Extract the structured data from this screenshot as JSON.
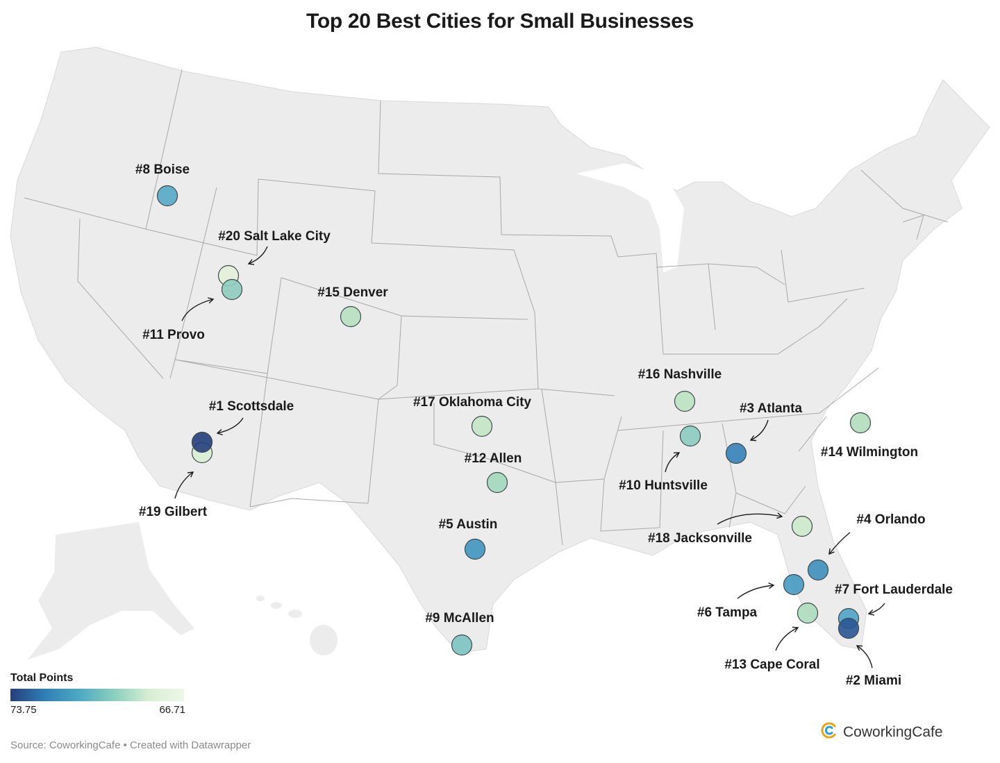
{
  "title": "Top 20 Best Cities for Small Businesses",
  "legend": {
    "title": "Total Points",
    "min_label": "73.75",
    "max_label": "66.71"
  },
  "source": "Source: CoworkingCafe • Created with Datawrapper",
  "brand": {
    "name": "CoworkingCafe",
    "icon": "coworkingcafe-logo-icon"
  },
  "colors": {
    "land": "#ececec",
    "border": "#a8a8a8",
    "scale_low": "#253e7c",
    "scale_high": "#eef7ea"
  },
  "cities": [
    {
      "rank": 1,
      "label": "#1 Scottsdale",
      "points": 73.75,
      "color": "#253e7c"
    },
    {
      "rank": 2,
      "label": "#2 Miami",
      "points": 73.2,
      "color": "#2a5595"
    },
    {
      "rank": 3,
      "label": "#3 Atlanta",
      "points": 72.1,
      "color": "#3582b7"
    },
    {
      "rank": 4,
      "label": "#4 Orlando",
      "points": 71.5,
      "color": "#3d8fbd"
    },
    {
      "rank": 5,
      "label": "#5 Austin",
      "points": 71.2,
      "color": "#4195c0"
    },
    {
      "rank": 6,
      "label": "#6 Tampa",
      "points": 71.0,
      "color": "#4699c2"
    },
    {
      "rank": 7,
      "label": "#7 Fort Lauderdale",
      "points": 70.7,
      "color": "#4ea3c6"
    },
    {
      "rank": 8,
      "label": "#8 Boise",
      "points": 70.5,
      "color": "#56a8c6"
    },
    {
      "rank": 9,
      "label": "#9 McAllen",
      "points": 69.6,
      "color": "#7cc4c2"
    },
    {
      "rank": 10,
      "label": "#10 Huntsville",
      "points": 69.4,
      "color": "#8ccbc0"
    },
    {
      "rank": 11,
      "label": "#11 Provo",
      "points": 69.3,
      "color": "#8ecdbf"
    },
    {
      "rank": 12,
      "label": "#12 Allen",
      "points": 68.9,
      "color": "#a3d8bc"
    },
    {
      "rank": 13,
      "label": "#13 Cape Coral",
      "points": 68.6,
      "color": "#acdbbd"
    },
    {
      "rank": 14,
      "label": "#14 Wilmington",
      "points": 68.4,
      "color": "#b2ddbe"
    },
    {
      "rank": 15,
      "label": "#15 Denver",
      "points": 68.1,
      "color": "#b8e0c0"
    },
    {
      "rank": 16,
      "label": "#16 Nashville",
      "points": 67.9,
      "color": "#bde2c2"
    },
    {
      "rank": 17,
      "label": "#17 Oklahoma City",
      "points": 67.6,
      "color": "#c4e5c7"
    },
    {
      "rank": 18,
      "label": "#18 Jacksonville",
      "points": 67.3,
      "color": "#cdeacc"
    },
    {
      "rank": 19,
      "label": "#19 Gilbert",
      "points": 67.0,
      "color": "#d9eed4"
    },
    {
      "rank": 20,
      "label": "#20 Salt Lake City",
      "points": 66.71,
      "color": "#e3f1da"
    }
  ]
}
